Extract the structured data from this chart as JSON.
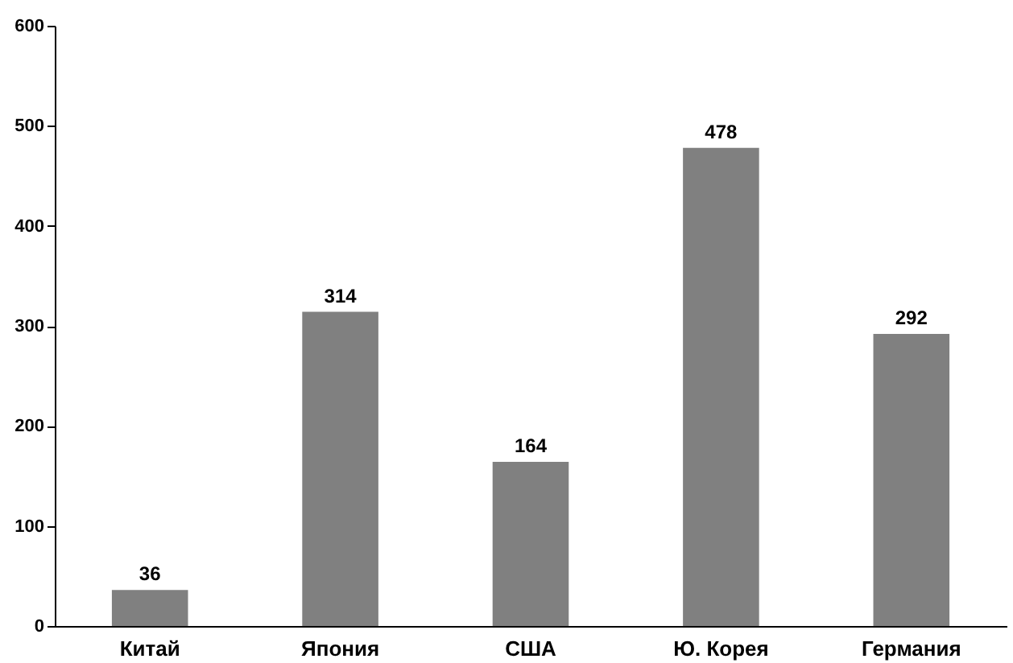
{
  "chart_data": {
    "type": "bar",
    "categories": [
      "Китай",
      "Япония",
      "США",
      "Ю. Корея",
      "Германия"
    ],
    "values": [
      36,
      314,
      164,
      478,
      292
    ],
    "color": "#808080",
    "ylim": [
      0,
      600
    ],
    "yticks": [
      0,
      100,
      200,
      300,
      400,
      500,
      600
    ],
    "grid": false,
    "data_labels": true
  }
}
